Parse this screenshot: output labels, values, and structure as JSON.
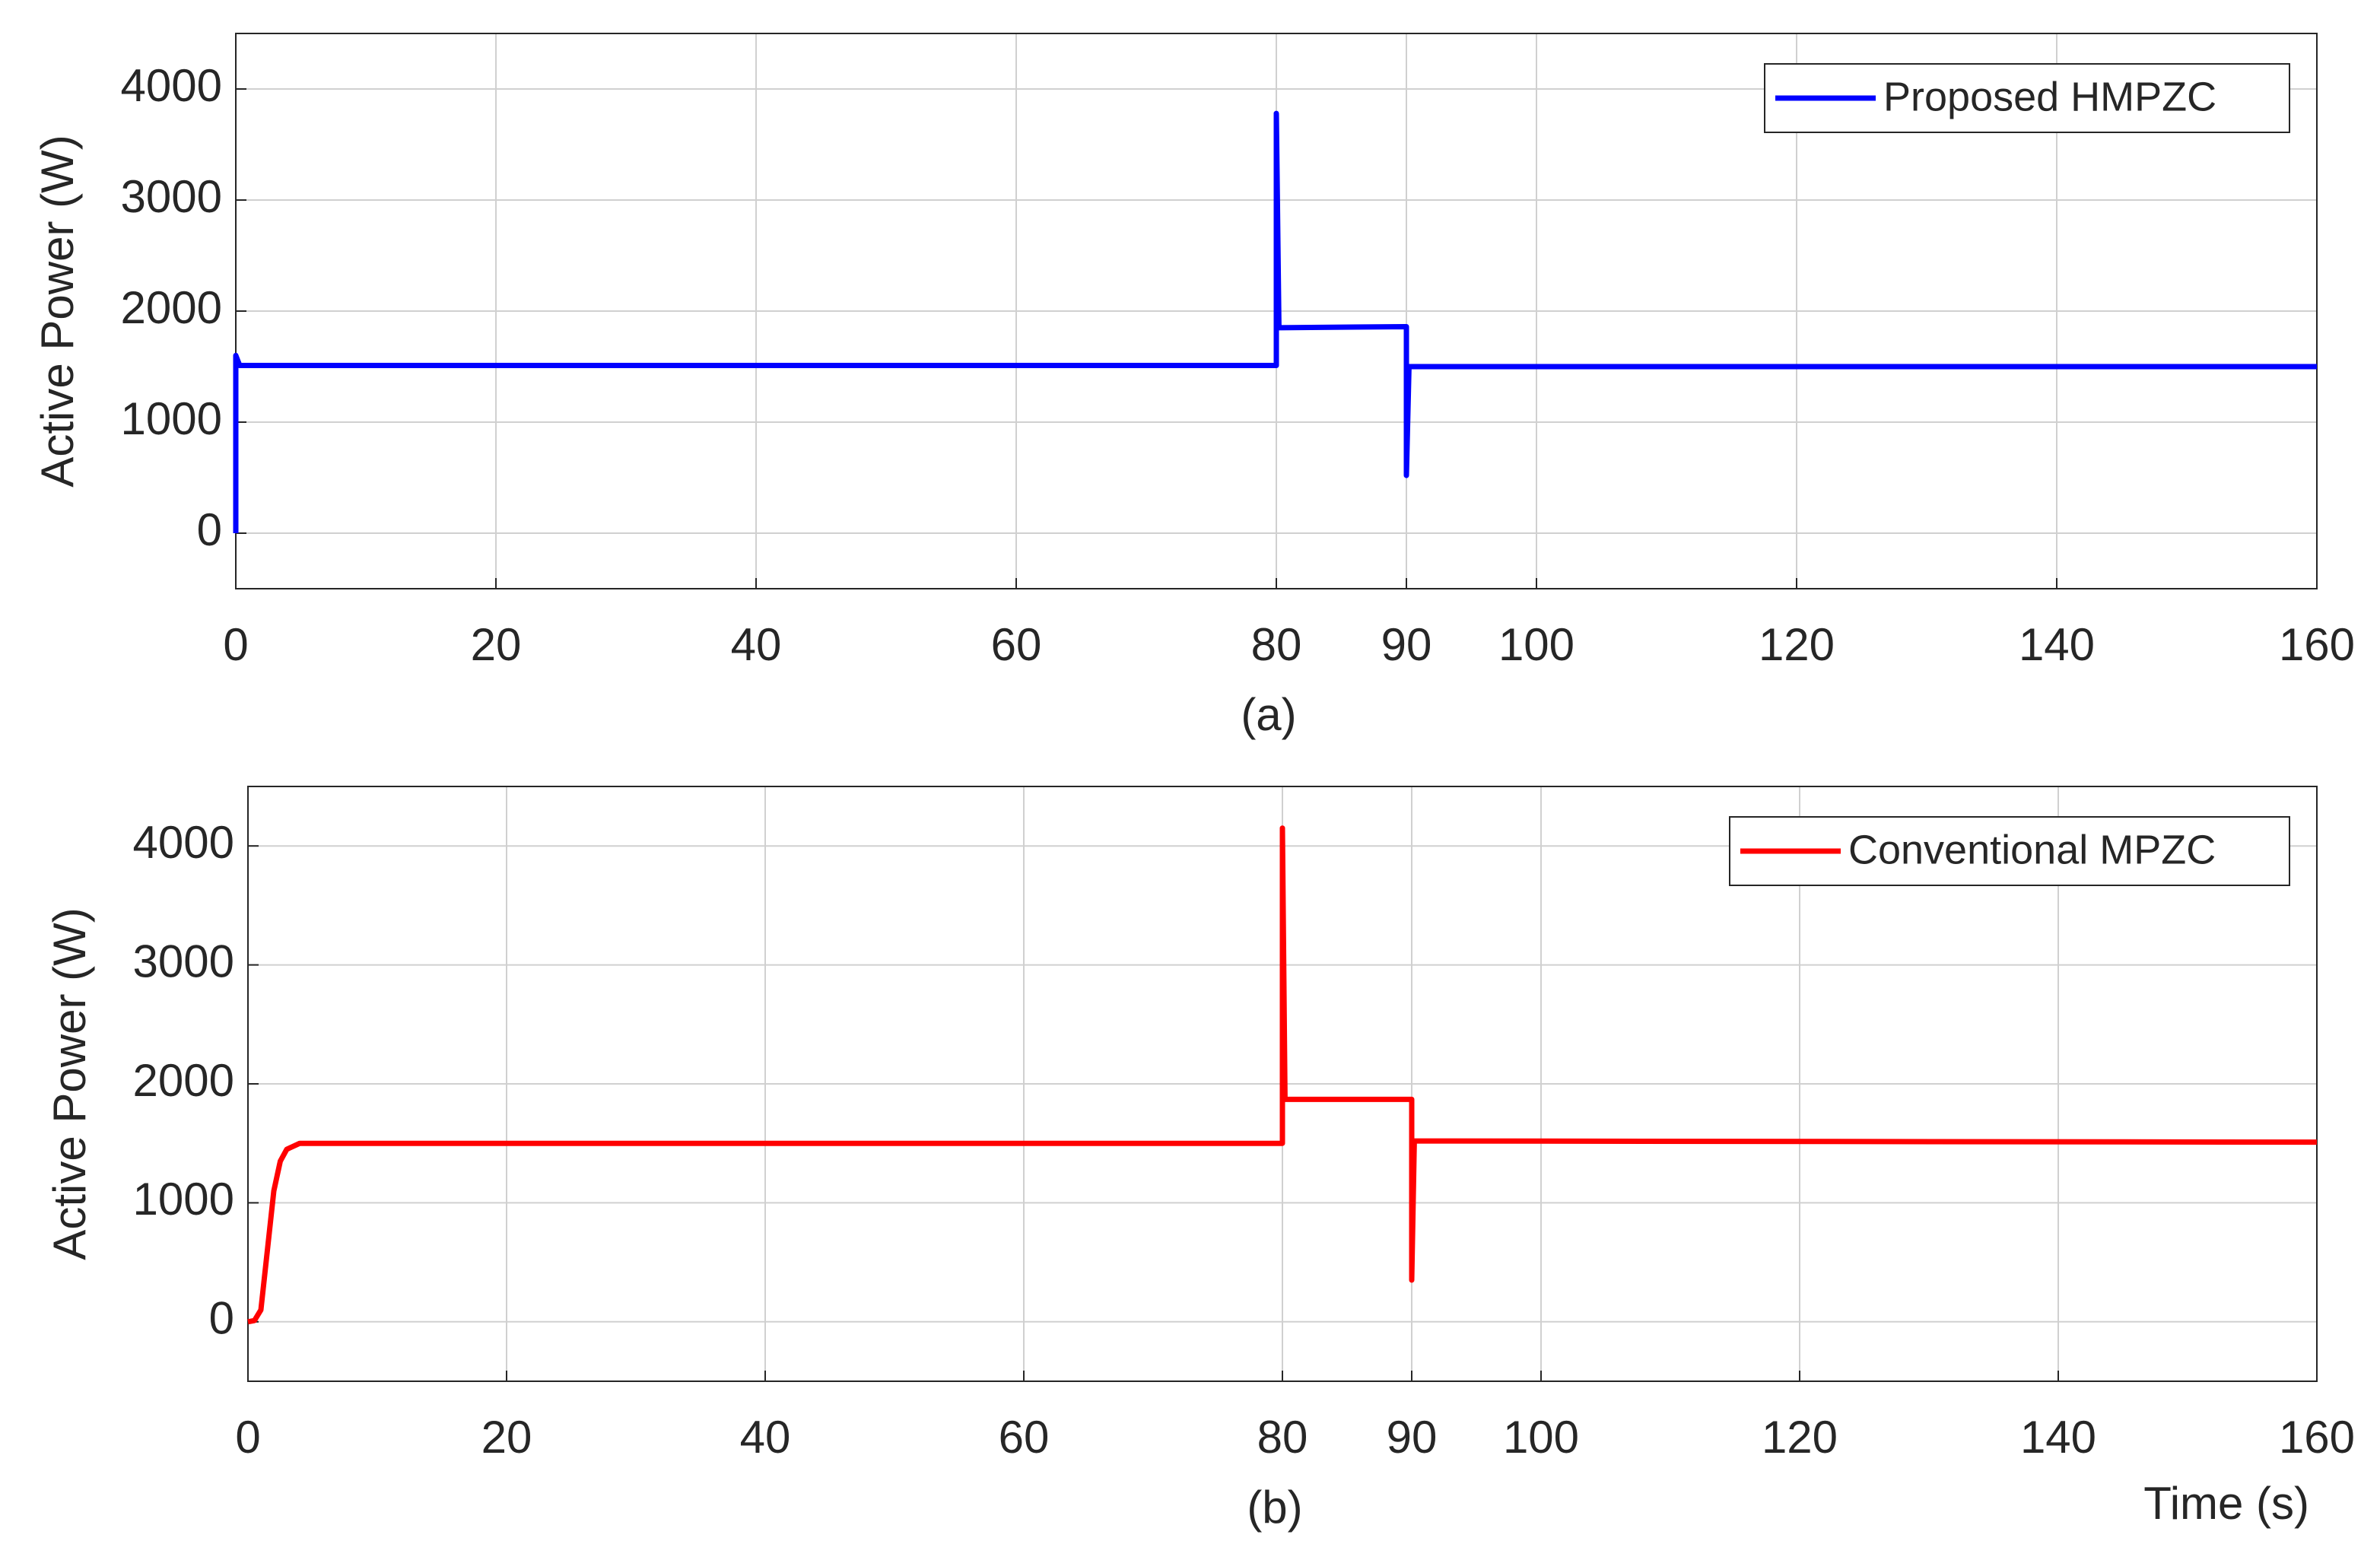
{
  "chart_data": [
    {
      "type": "line",
      "xlabel": "(a)",
      "ylabel": "Active Power (W)",
      "x": [
        0,
        0,
        0.3,
        80,
        80,
        80.2,
        89.9,
        90,
        90,
        90.2,
        160
      ],
      "series": [
        {
          "name": "Proposed HMPZC",
          "color": "#0000ff",
          "values": [
            0,
            1600,
            1510,
            1510,
            3780,
            1850,
            1860,
            1860,
            520,
            1500,
            1500
          ]
        }
      ],
      "xlim": [
        0,
        160
      ],
      "ylim": [
        -500,
        4500
      ],
      "xticks": [
        0,
        20,
        40,
        60,
        80,
        90,
        100,
        120,
        140,
        160
      ],
      "yticks": [
        0,
        1000,
        2000,
        3000,
        4000
      ],
      "grid": true,
      "legend": "upper right"
    },
    {
      "type": "line",
      "xlabel": "(b)",
      "annotation": "Time (s)",
      "ylabel": "Active Power (W)",
      "x": [
        0,
        0.5,
        1,
        1.5,
        2,
        2.5,
        3,
        4,
        80,
        80,
        80.2,
        90,
        90,
        90.2,
        160
      ],
      "series": [
        {
          "name": "Conventional MPZC",
          "color": "#ff0000",
          "values": [
            0,
            10,
            100,
            600,
            1100,
            1350,
            1450,
            1500,
            1500,
            4150,
            1870,
            1870,
            350,
            1520,
            1510
          ]
        }
      ],
      "xlim": [
        0,
        160
      ],
      "ylim": [
        -500,
        4500
      ],
      "xticks": [
        0,
        20,
        40,
        60,
        80,
        90,
        100,
        120,
        140,
        160
      ],
      "yticks": [
        0,
        1000,
        2000,
        3000,
        4000
      ],
      "grid": true,
      "legend": "upper right"
    }
  ]
}
